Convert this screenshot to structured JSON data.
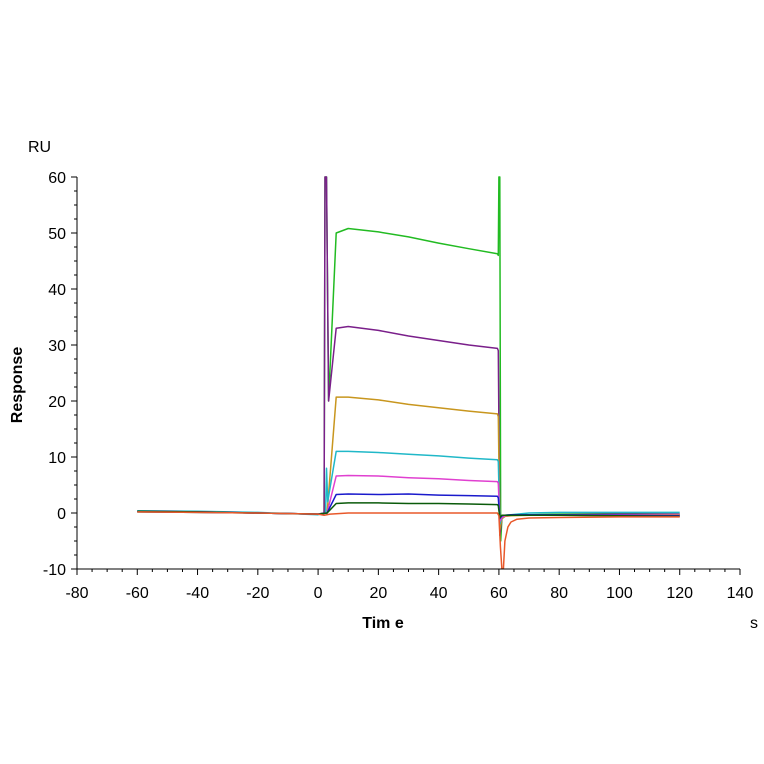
{
  "chart_data": {
    "type": "line",
    "title": "",
    "xlabel": "Tim e",
    "ylabel": "Response",
    "x_unit": "s",
    "y_unit": "RU",
    "xlim": [
      -80,
      140
    ],
    "ylim": [
      -10,
      60
    ],
    "x_ticks": [
      "-80",
      "-60",
      "-40",
      "-20",
      "0",
      "20",
      "40",
      "60",
      "80",
      "100",
      "120",
      "140"
    ],
    "y_ticks": [
      "-10",
      "0",
      "10",
      "20",
      "30",
      "40",
      "50",
      "60"
    ],
    "grid": false,
    "legend": "none",
    "series": [
      {
        "color": "#22bb22",
        "x": [
          -60,
          -40,
          -20,
          0,
          2,
          2.3,
          2.8,
          3.5,
          6,
          10,
          20,
          30,
          40,
          50,
          59.5,
          59.8,
          60,
          60.3,
          60.6,
          61,
          62,
          64,
          70,
          80,
          100,
          120
        ],
        "y": [
          0.2,
          0.1,
          0,
          -0.2,
          0,
          60,
          60,
          20,
          50,
          50.8,
          50.2,
          49.3,
          48.2,
          47.2,
          46.3,
          46,
          60,
          60,
          -5,
          -1,
          -0.6,
          -0.4,
          -0.3,
          -0.2,
          -0.1,
          -0.2
        ]
      },
      {
        "color": "#7a1f8a",
        "x": [
          -60,
          -40,
          -20,
          0,
          2,
          2.3,
          2.8,
          3.5,
          6,
          10,
          20,
          30,
          40,
          50,
          59.5,
          59.8,
          60.3,
          61,
          62,
          64,
          70,
          80,
          100,
          120
        ],
        "y": [
          0.2,
          0.1,
          0,
          -0.2,
          0,
          60,
          60,
          20,
          33,
          33.3,
          32.6,
          31.6,
          30.8,
          30,
          29.4,
          29,
          -4,
          -1,
          -0.5,
          -0.4,
          -0.3,
          -0.3,
          -0.2,
          -0.2
        ]
      },
      {
        "color": "#c8961e",
        "x": [
          -60,
          -40,
          -20,
          0,
          3,
          6,
          10,
          20,
          30,
          40,
          50,
          59.5,
          59.8,
          60.3,
          61,
          62,
          64,
          70,
          80,
          100,
          120
        ],
        "y": [
          0.3,
          0.2,
          0,
          -0.2,
          0,
          20.7,
          20.7,
          20.2,
          19.4,
          18.8,
          18.2,
          17.7,
          17.2,
          -3,
          -1,
          -0.6,
          -0.5,
          -0.4,
          -0.3,
          -0.3,
          -0.3
        ]
      },
      {
        "color": "#20b8c8",
        "x": [
          -60,
          -40,
          -20,
          0,
          2.5,
          2.8,
          3.2,
          6,
          10,
          20,
          30,
          40,
          50,
          59.5,
          59.8,
          60.3,
          61,
          62,
          64,
          70,
          80,
          100,
          120
        ],
        "y": [
          0.4,
          0.3,
          0.1,
          -0.3,
          0,
          8,
          2,
          11,
          11,
          10.8,
          10.5,
          10.2,
          9.8,
          9.5,
          9.2,
          -2,
          -0.8,
          -0.4,
          -0.3,
          0,
          0.1,
          0.1,
          0.1
        ]
      },
      {
        "color": "#e040d0",
        "x": [
          -60,
          -40,
          -20,
          0,
          3,
          6,
          10,
          20,
          30,
          40,
          50,
          59.5,
          59.8,
          60.3,
          61,
          62,
          64,
          70,
          80,
          100,
          120
        ],
        "y": [
          0.3,
          0.2,
          0,
          -0.2,
          0,
          6.6,
          6.7,
          6.6,
          6.3,
          6.1,
          5.8,
          5.6,
          5.3,
          -1.5,
          -0.8,
          -0.5,
          -0.4,
          -0.3,
          -0.3,
          -0.3,
          -0.4
        ]
      },
      {
        "color": "#1a1acc",
        "x": [
          -60,
          -40,
          -20,
          0,
          3,
          6,
          10,
          20,
          30,
          40,
          50,
          59.5,
          59.8,
          60.3,
          61,
          62,
          64,
          70,
          80,
          100,
          120
        ],
        "y": [
          0.3,
          0.2,
          0,
          -0.2,
          0,
          3.3,
          3.4,
          3.3,
          3.4,
          3.2,
          3.1,
          3,
          2.7,
          -1,
          -0.5,
          -0.4,
          -0.3,
          -0.3,
          -0.3,
          -0.4,
          -0.5
        ]
      },
      {
        "color": "#0a5a0a",
        "x": [
          -60,
          -40,
          -20,
          0,
          3,
          6,
          10,
          20,
          30,
          40,
          50,
          59.5,
          59.8,
          60.3,
          61,
          62,
          64,
          70,
          80,
          100,
          120
        ],
        "y": [
          0.3,
          0.2,
          0,
          -0.2,
          0,
          1.7,
          1.8,
          1.8,
          1.7,
          1.7,
          1.6,
          1.5,
          1.3,
          -0.8,
          -0.4,
          -0.4,
          -0.4,
          -0.4,
          -0.4,
          -0.5,
          -0.6
        ]
      },
      {
        "color": "#e8582a",
        "x": [
          -60,
          -40,
          -20,
          0,
          2,
          4,
          10,
          20,
          30,
          40,
          50,
          59.5,
          60,
          60.5,
          61,
          61.5,
          62,
          63,
          64,
          66,
          70,
          80,
          100,
          120
        ],
        "y": [
          0.2,
          0.1,
          0,
          -0.2,
          -0.4,
          -0.2,
          0,
          0,
          0,
          0,
          0,
          0,
          -0.5,
          -6,
          -10,
          -10,
          -5,
          -2.5,
          -1.6,
          -1.1,
          -0.9,
          -0.8,
          -0.7,
          -0.7
        ]
      }
    ]
  }
}
